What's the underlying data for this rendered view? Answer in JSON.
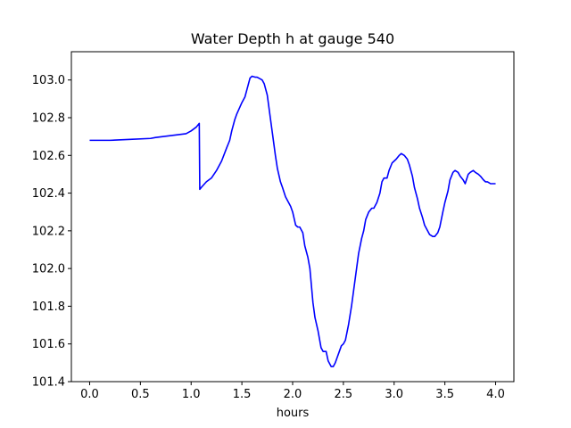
{
  "chart_data": {
    "type": "line",
    "title": "Water Depth h at gauge 540",
    "xlabel": "hours",
    "ylabel": "",
    "xlim": [
      -0.18,
      4.18
    ],
    "ylim": [
      101.4,
      103.15
    ],
    "xticks": [
      0.0,
      0.5,
      1.0,
      1.5,
      2.0,
      2.5,
      3.0,
      3.5,
      4.0
    ],
    "xtick_labels": [
      "0.0",
      "0.5",
      "1.0",
      "1.5",
      "2.0",
      "2.5",
      "3.0",
      "3.5",
      "4.0"
    ],
    "yticks": [
      101.4,
      101.6,
      101.8,
      102.0,
      102.2,
      102.4,
      102.6,
      102.8,
      103.0
    ],
    "ytick_labels": [
      "101.4",
      "101.6",
      "101.8",
      "102.0",
      "102.2",
      "102.4",
      "102.6",
      "102.8",
      "103.0"
    ],
    "grid": false,
    "series": [
      {
        "color": "#0000ff",
        "x": [
          0.0,
          0.2,
          0.4,
          0.6,
          0.65,
          0.8,
          0.95,
          1.0,
          1.05,
          1.08,
          1.085,
          1.1,
          1.15,
          1.2,
          1.25,
          1.3,
          1.35,
          1.38,
          1.4,
          1.43,
          1.45,
          1.5,
          1.53,
          1.55,
          1.58,
          1.6,
          1.63,
          1.65,
          1.7,
          1.72,
          1.75,
          1.78,
          1.8,
          1.83,
          1.85,
          1.88,
          1.9,
          1.93,
          1.96,
          1.98,
          2.0,
          2.03,
          2.05,
          2.07,
          2.1,
          2.12,
          2.13,
          2.15,
          2.17,
          2.2,
          2.22,
          2.25,
          2.28,
          2.3,
          2.33,
          2.35,
          2.38,
          2.4,
          2.42,
          2.44,
          2.46,
          2.48,
          2.5,
          2.52,
          2.55,
          2.58,
          2.6,
          2.63,
          2.65,
          2.68,
          2.7,
          2.72,
          2.75,
          2.78,
          2.8,
          2.83,
          2.86,
          2.88,
          2.9,
          2.93,
          2.95,
          2.98,
          3.0,
          3.02,
          3.05,
          3.07,
          3.1,
          3.13,
          3.15,
          3.18,
          3.2,
          3.23,
          3.25,
          3.28,
          3.3,
          3.33,
          3.35,
          3.38,
          3.4,
          3.43,
          3.45,
          3.48,
          3.5,
          3.53,
          3.55,
          3.58,
          3.6,
          3.63,
          3.65,
          3.68,
          3.7,
          3.73,
          3.75,
          3.78,
          3.8,
          3.83,
          3.85,
          3.88,
          3.9,
          3.92,
          3.95,
          3.97,
          4.0
        ],
        "y": [
          102.68,
          102.68,
          102.685,
          102.69,
          102.695,
          102.705,
          102.715,
          102.73,
          102.75,
          102.77,
          102.42,
          102.43,
          102.46,
          102.48,
          102.52,
          102.57,
          102.64,
          102.68,
          102.73,
          102.79,
          102.82,
          102.88,
          102.91,
          102.95,
          103.01,
          103.02,
          103.015,
          103.015,
          103.0,
          102.98,
          102.92,
          102.8,
          102.72,
          102.6,
          102.53,
          102.46,
          102.43,
          102.38,
          102.35,
          102.33,
          102.3,
          102.23,
          102.22,
          102.22,
          102.19,
          102.12,
          102.1,
          102.06,
          102.0,
          101.82,
          101.74,
          101.67,
          101.58,
          101.56,
          101.56,
          101.51,
          101.48,
          101.48,
          101.5,
          101.53,
          101.56,
          101.59,
          101.6,
          101.62,
          101.7,
          101.8,
          101.88,
          102.0,
          102.08,
          102.16,
          102.2,
          102.26,
          102.3,
          102.32,
          102.32,
          102.35,
          102.4,
          102.46,
          102.48,
          102.48,
          102.52,
          102.56,
          102.57,
          102.58,
          102.6,
          102.61,
          102.6,
          102.58,
          102.55,
          102.49,
          102.43,
          102.37,
          102.32,
          102.27,
          102.23,
          102.2,
          102.18,
          102.17,
          102.17,
          102.19,
          102.22,
          102.3,
          102.35,
          102.41,
          102.47,
          102.51,
          102.52,
          102.51,
          102.49,
          102.47,
          102.45,
          102.5,
          102.51,
          102.52,
          102.51,
          102.5,
          102.49,
          102.47,
          102.46,
          102.46,
          102.45,
          102.45,
          102.45
        ]
      }
    ]
  }
}
